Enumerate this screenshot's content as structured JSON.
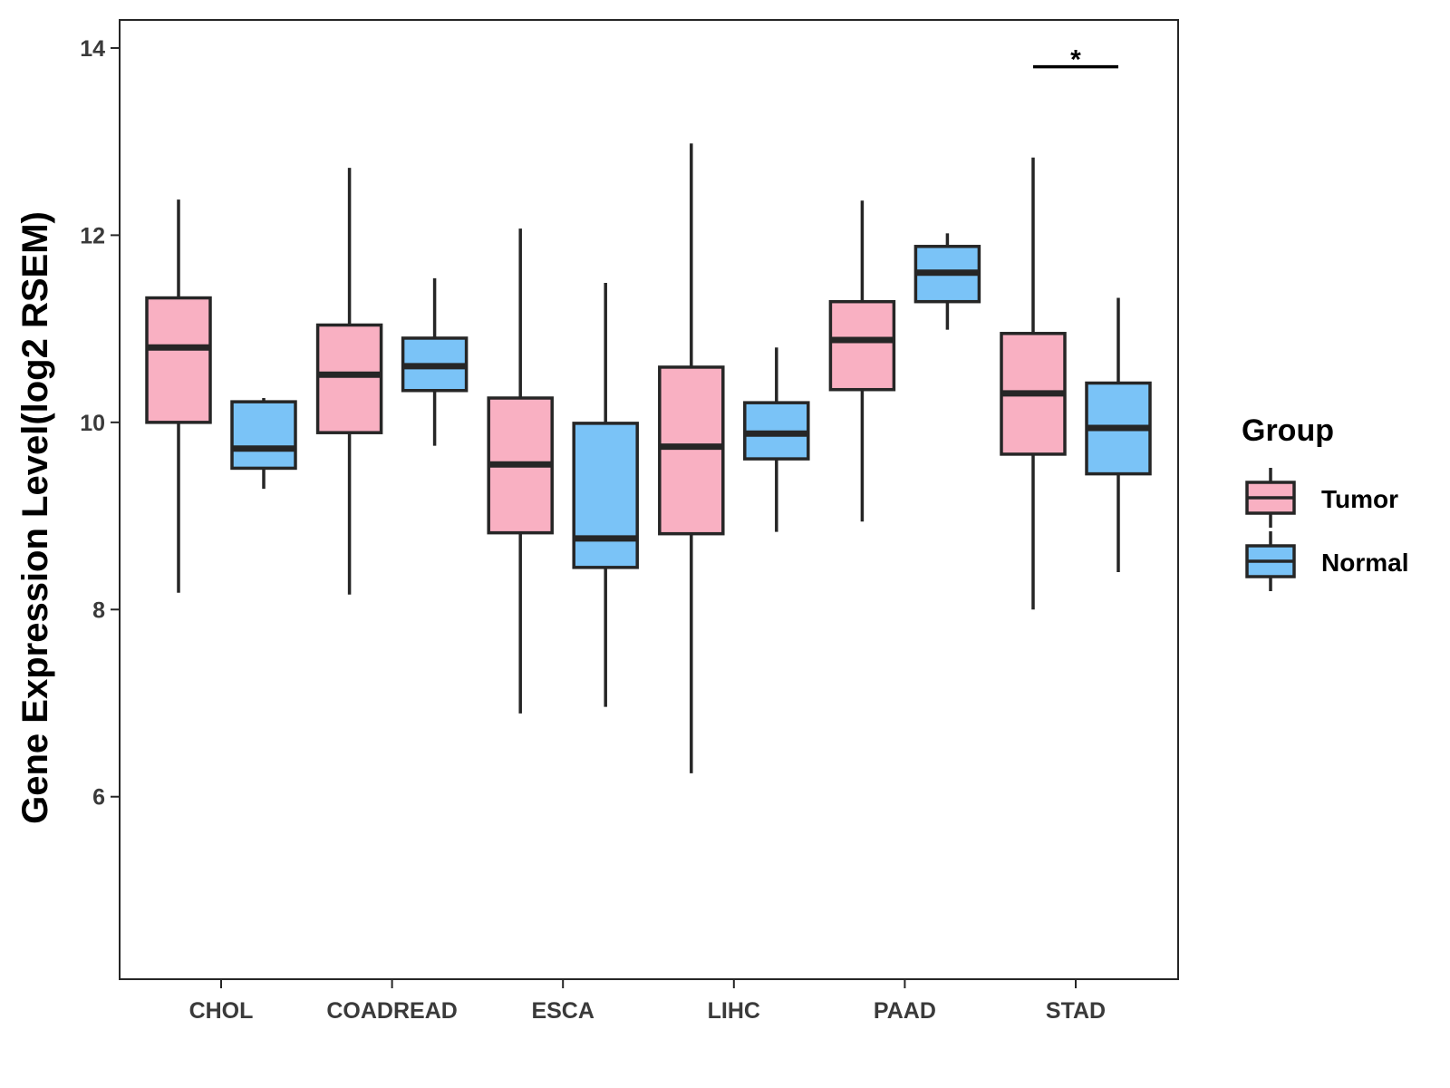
{
  "chart_data": {
    "type": "boxplot",
    "title": "",
    "xlabel": "",
    "ylabel": "Gene Expression Level(log2 RSEM)",
    "ylim": [
      4.05,
      14.3
    ],
    "yticks": [
      6,
      8,
      10,
      12,
      14
    ],
    "yticklabels": [
      "6",
      "8",
      "10",
      "12",
      "14"
    ],
    "categories": [
      "CHOL",
      "COADREAD",
      "ESCA",
      "LIHC",
      "PAAD",
      "STAD"
    ],
    "legend": {
      "title": "Group",
      "position": "right"
    },
    "series": [
      {
        "name": "Tumor",
        "color": "#F9B0C2",
        "boxes": [
          {
            "category": "CHOL",
            "whisker_low": 8.18,
            "q1": 10.0,
            "median": 10.8,
            "q3": 11.33,
            "whisker_high": 12.38
          },
          {
            "category": "COADREAD",
            "whisker_low": 8.16,
            "q1": 9.89,
            "median": 10.51,
            "q3": 11.04,
            "whisker_high": 12.72
          },
          {
            "category": "ESCA",
            "whisker_low": 6.89,
            "q1": 8.82,
            "median": 9.55,
            "q3": 10.26,
            "whisker_high": 12.07
          },
          {
            "category": "LIHC",
            "whisker_low": 6.25,
            "q1": 8.81,
            "median": 9.74,
            "q3": 10.59,
            "whisker_high": 12.98
          },
          {
            "category": "PAAD",
            "whisker_low": 8.94,
            "q1": 10.35,
            "median": 10.88,
            "q3": 11.29,
            "whisker_high": 12.37
          },
          {
            "category": "STAD",
            "whisker_low": 8.0,
            "q1": 9.66,
            "median": 10.31,
            "q3": 10.95,
            "whisker_high": 12.83
          }
        ]
      },
      {
        "name": "Normal",
        "color": "#7AC3F7",
        "boxes": [
          {
            "category": "CHOL",
            "whisker_low": 9.29,
            "q1": 9.51,
            "median": 9.72,
            "q3": 10.22,
            "whisker_high": 10.26
          },
          {
            "category": "COADREAD",
            "whisker_low": 9.75,
            "q1": 10.34,
            "median": 10.6,
            "q3": 10.9,
            "whisker_high": 11.54
          },
          {
            "category": "ESCA",
            "whisker_low": 6.96,
            "q1": 8.45,
            "median": 8.76,
            "q3": 9.99,
            "whisker_high": 11.49
          },
          {
            "category": "LIHC",
            "whisker_low": 8.83,
            "q1": 9.61,
            "median": 9.88,
            "q3": 10.21,
            "whisker_high": 10.8
          },
          {
            "category": "PAAD",
            "whisker_low": 10.99,
            "q1": 11.29,
            "median": 11.6,
            "q3": 11.88,
            "whisker_high": 12.02
          },
          {
            "category": "STAD",
            "whisker_low": 8.4,
            "q1": 9.45,
            "median": 9.94,
            "q3": 10.42,
            "whisker_high": 11.33
          }
        ]
      }
    ],
    "annotations": [
      {
        "category": "STAD",
        "y": 13.8,
        "text": "*"
      }
    ]
  }
}
